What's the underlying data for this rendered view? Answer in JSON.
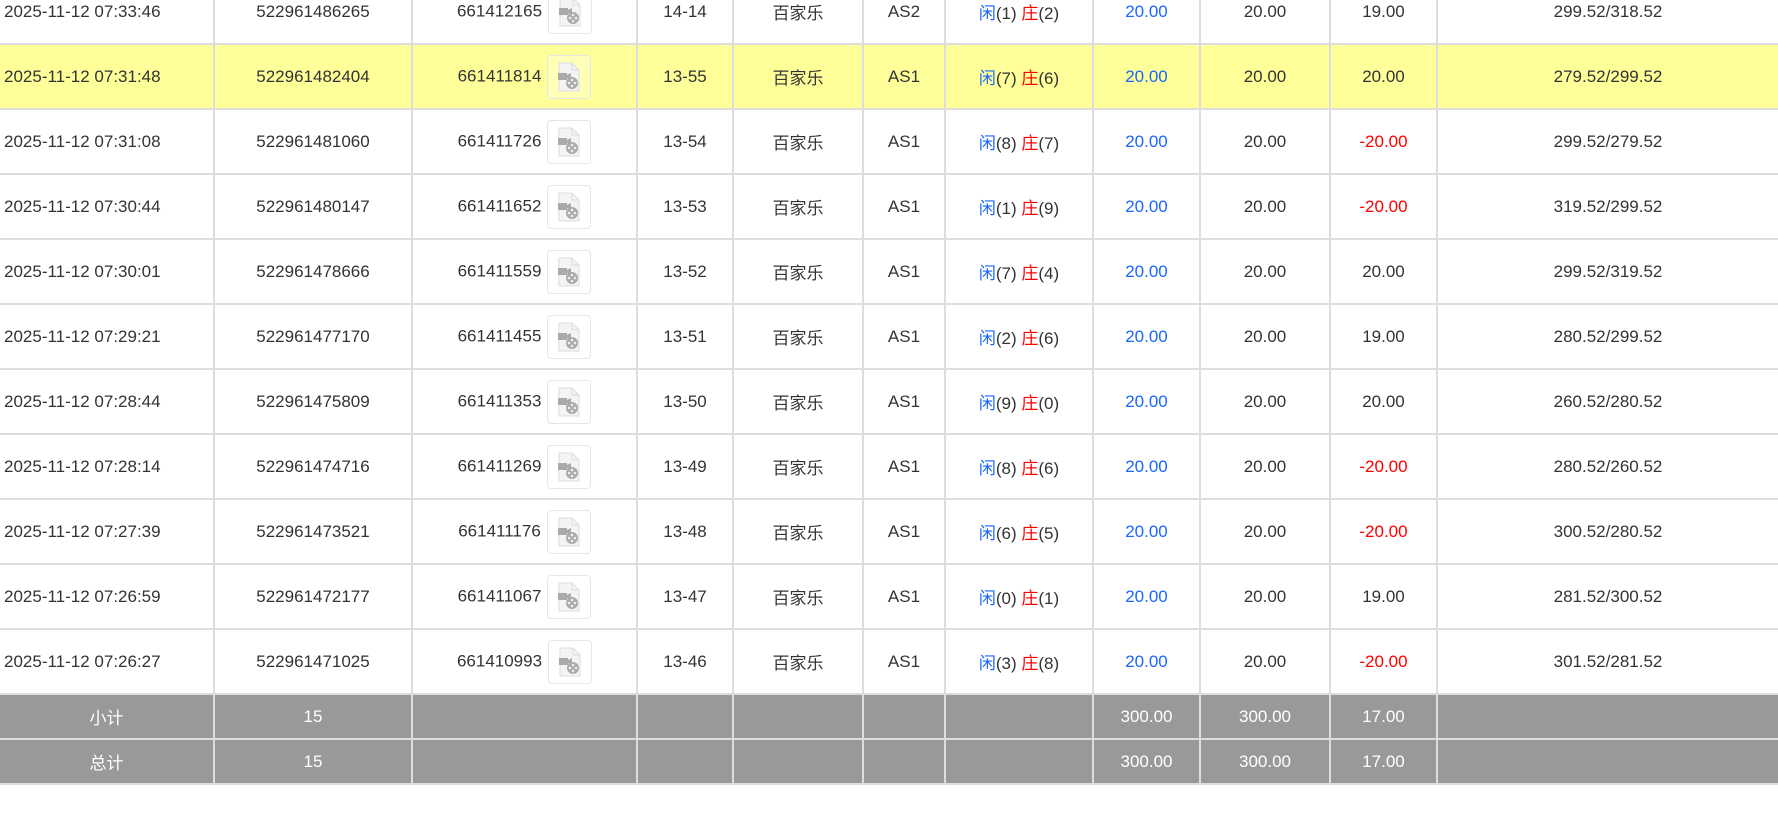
{
  "rows": [
    {
      "time": "2025-11-12 07:33:46",
      "order": "522961486265",
      "game": "661412165",
      "round": "14-14",
      "type": "百家乐",
      "table": "AS2",
      "player": "闲",
      "player_n": "(1)",
      "banker": "庄",
      "banker_n": "(2)",
      "bet": "20.00",
      "valid": "20.00",
      "win": "19.00",
      "win_neg": false,
      "balance": "299.52/318.52",
      "highlight": false
    },
    {
      "time": "2025-11-12 07:31:48",
      "order": "522961482404",
      "game": "661411814",
      "round": "13-55",
      "type": "百家乐",
      "table": "AS1",
      "player": "闲",
      "player_n": "(7)",
      "banker": "庄",
      "banker_n": "(6)",
      "bet": "20.00",
      "valid": "20.00",
      "win": "20.00",
      "win_neg": false,
      "balance": "279.52/299.52",
      "highlight": true
    },
    {
      "time": "2025-11-12 07:31:08",
      "order": "522961481060",
      "game": "661411726",
      "round": "13-54",
      "type": "百家乐",
      "table": "AS1",
      "player": "闲",
      "player_n": "(8)",
      "banker": "庄",
      "banker_n": "(7)",
      "bet": "20.00",
      "valid": "20.00",
      "win": "-20.00",
      "win_neg": true,
      "balance": "299.52/279.52",
      "highlight": false
    },
    {
      "time": "2025-11-12 07:30:44",
      "order": "522961480147",
      "game": "661411652",
      "round": "13-53",
      "type": "百家乐",
      "table": "AS1",
      "player": "闲",
      "player_n": "(1)",
      "banker": "庄",
      "banker_n": "(9)",
      "bet": "20.00",
      "valid": "20.00",
      "win": "-20.00",
      "win_neg": true,
      "balance": "319.52/299.52",
      "highlight": false
    },
    {
      "time": "2025-11-12 07:30:01",
      "order": "522961478666",
      "game": "661411559",
      "round": "13-52",
      "type": "百家乐",
      "table": "AS1",
      "player": "闲",
      "player_n": "(7)",
      "banker": "庄",
      "banker_n": "(4)",
      "bet": "20.00",
      "valid": "20.00",
      "win": "20.00",
      "win_neg": false,
      "balance": "299.52/319.52",
      "highlight": false
    },
    {
      "time": "2025-11-12 07:29:21",
      "order": "522961477170",
      "game": "661411455",
      "round": "13-51",
      "type": "百家乐",
      "table": "AS1",
      "player": "闲",
      "player_n": "(2)",
      "banker": "庄",
      "banker_n": "(6)",
      "bet": "20.00",
      "valid": "20.00",
      "win": "19.00",
      "win_neg": false,
      "balance": "280.52/299.52",
      "highlight": false
    },
    {
      "time": "2025-11-12 07:28:44",
      "order": "522961475809",
      "game": "661411353",
      "round": "13-50",
      "type": "百家乐",
      "table": "AS1",
      "player": "闲",
      "player_n": "(9)",
      "banker": "庄",
      "banker_n": "(0)",
      "bet": "20.00",
      "valid": "20.00",
      "win": "20.00",
      "win_neg": false,
      "balance": "260.52/280.52",
      "highlight": false
    },
    {
      "time": "2025-11-12 07:28:14",
      "order": "522961474716",
      "game": "661411269",
      "round": "13-49",
      "type": "百家乐",
      "table": "AS1",
      "player": "闲",
      "player_n": "(8)",
      "banker": "庄",
      "banker_n": "(6)",
      "bet": "20.00",
      "valid": "20.00",
      "win": "-20.00",
      "win_neg": true,
      "balance": "280.52/260.52",
      "highlight": false
    },
    {
      "time": "2025-11-12 07:27:39",
      "order": "522961473521",
      "game": "661411176",
      "round": "13-48",
      "type": "百家乐",
      "table": "AS1",
      "player": "闲",
      "player_n": "(6)",
      "banker": "庄",
      "banker_n": "(5)",
      "bet": "20.00",
      "valid": "20.00",
      "win": "-20.00",
      "win_neg": true,
      "balance": "300.52/280.52",
      "highlight": false
    },
    {
      "time": "2025-11-12 07:26:59",
      "order": "522961472177",
      "game": "661411067",
      "round": "13-47",
      "type": "百家乐",
      "table": "AS1",
      "player": "闲",
      "player_n": "(0)",
      "banker": "庄",
      "banker_n": "(1)",
      "bet": "20.00",
      "valid": "20.00",
      "win": "19.00",
      "win_neg": false,
      "balance": "281.52/300.52",
      "highlight": false
    },
    {
      "time": "2025-11-12 07:26:27",
      "order": "522961471025",
      "game": "661410993",
      "round": "13-46",
      "type": "百家乐",
      "table": "AS1",
      "player": "闲",
      "player_n": "(3)",
      "banker": "庄",
      "banker_n": "(8)",
      "bet": "20.00",
      "valid": "20.00",
      "win": "-20.00",
      "win_neg": true,
      "balance": "301.52/281.52",
      "highlight": false
    }
  ],
  "subtotal": {
    "label": "小计",
    "count": "15",
    "bet": "300.00",
    "valid": "300.00",
    "win": "17.00"
  },
  "total": {
    "label": "总计",
    "count": "15",
    "bet": "300.00",
    "valid": "300.00",
    "win": "17.00"
  },
  "colors": {
    "highlight": "#ffff99",
    "player": "#1a66ff",
    "loss": "#ff0000",
    "summary_bg": "#999999"
  }
}
